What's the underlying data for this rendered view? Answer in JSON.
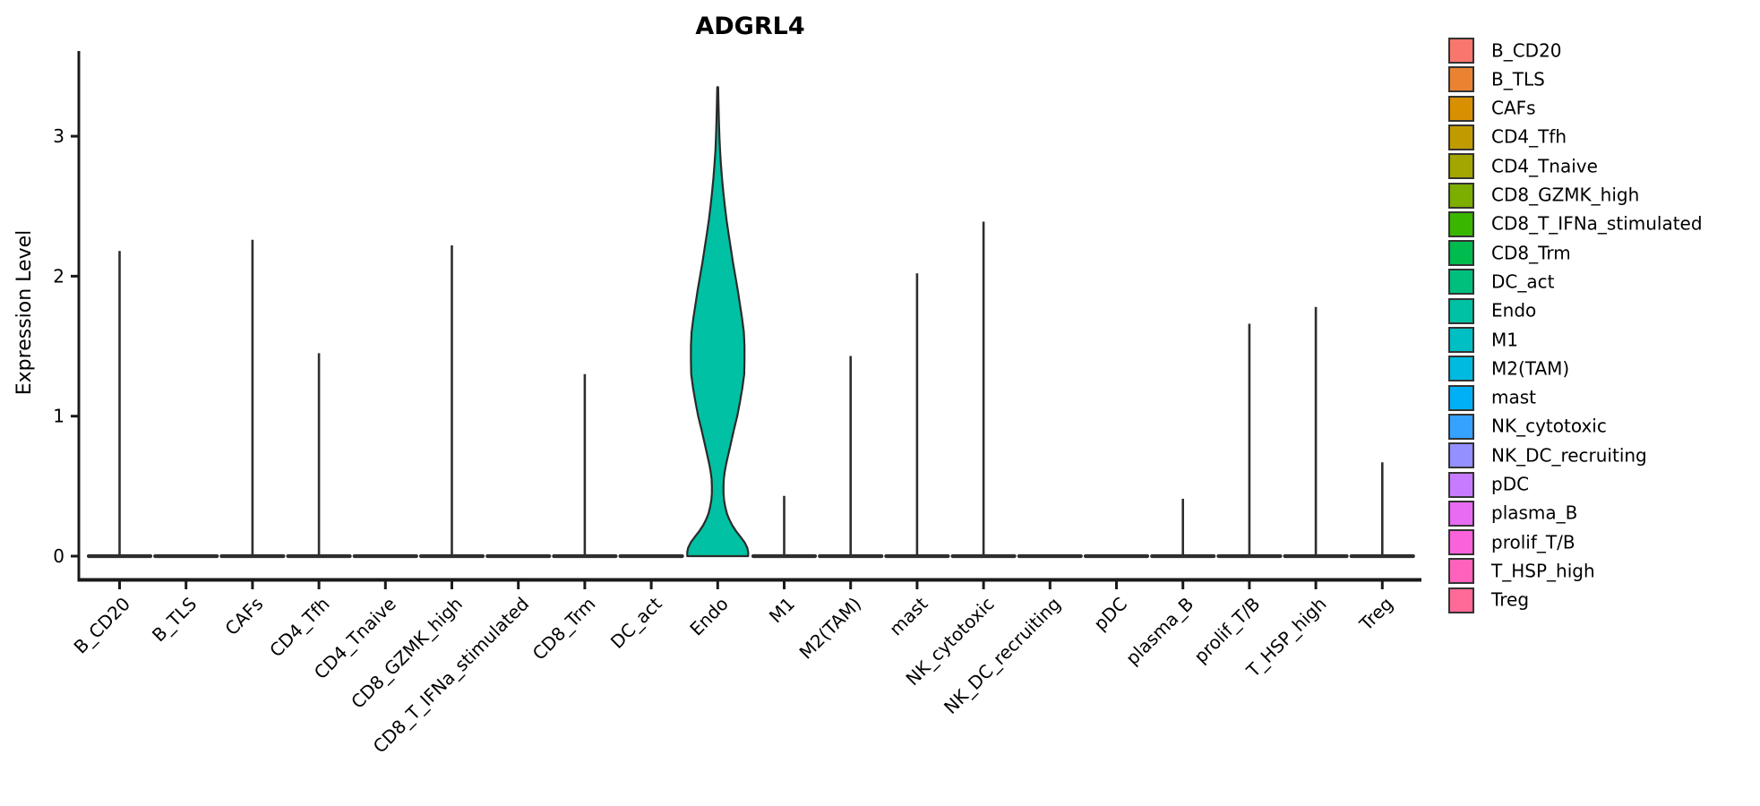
{
  "figure": {
    "title": "ADGRL4",
    "ylabel": "Expression Level"
  },
  "chart_data": {
    "type": "violin",
    "title": "ADGRL4",
    "xlabel": "",
    "ylabel": "Expression Level",
    "yticks": [
      0,
      1,
      2,
      3
    ],
    "ylim": [
      -0.17,
      3.6
    ],
    "grid": false,
    "legend_position": "right",
    "violin_fill_applies_to": "Endo",
    "outline_color": "#2e2e2e",
    "categories": [
      {
        "name": "B_CD20",
        "color": "#F8766D",
        "max_expression": 2.18
      },
      {
        "name": "B_TLS",
        "color": "#EA8331",
        "max_expression": 0
      },
      {
        "name": "CAFs",
        "color": "#D89000",
        "max_expression": 2.26
      },
      {
        "name": "CD4_Tfh",
        "color": "#C09B00",
        "max_expression": 1.45
      },
      {
        "name": "CD4_Tnaive",
        "color": "#A3A500",
        "max_expression": 0
      },
      {
        "name": "CD8_GZMK_high",
        "color": "#7CAE00",
        "max_expression": 2.22
      },
      {
        "name": "CD8_T_IFNa_stimulated",
        "color": "#39B600",
        "max_expression": 0
      },
      {
        "name": "CD8_Trm",
        "color": "#00BB4E",
        "max_expression": 1.3
      },
      {
        "name": "DC_act",
        "color": "#00BF7D",
        "max_expression": 0
      },
      {
        "name": "Endo",
        "color": "#00C1A3",
        "max_expression": 3.35
      },
      {
        "name": "M1",
        "color": "#00BFC4",
        "max_expression": 0.43
      },
      {
        "name": "M2(TAM)",
        "color": "#00BAE0",
        "max_expression": 1.43
      },
      {
        "name": "mast",
        "color": "#00B0F6",
        "max_expression": 2.02
      },
      {
        "name": "NK_cytotoxic",
        "color": "#35A2FF",
        "max_expression": 2.39
      },
      {
        "name": "NK_DC_recruiting",
        "color": "#9590FF",
        "max_expression": 0
      },
      {
        "name": "pDC",
        "color": "#C77CFF",
        "max_expression": 0
      },
      {
        "name": "plasma_B",
        "color": "#E76BF3",
        "max_expression": 0.41
      },
      {
        "name": "prolif_T/B",
        "color": "#FA62DB",
        "max_expression": 1.66
      },
      {
        "name": "T_HSP_high",
        "color": "#FF62BC",
        "max_expression": 1.78
      },
      {
        "name": "Treg",
        "color": "#FF6A98",
        "max_expression": 0.67
      }
    ],
    "expressed_violin": {
      "category": "Endo",
      "max": 3.35,
      "density_profile": [
        [
          0.0,
          1.0
        ],
        [
          0.03,
          1.0
        ],
        [
          0.06,
          0.97
        ],
        [
          0.1,
          0.88
        ],
        [
          0.14,
          0.74
        ],
        [
          0.18,
          0.6
        ],
        [
          0.22,
          0.48
        ],
        [
          0.26,
          0.385
        ],
        [
          0.3,
          0.31
        ],
        [
          0.35,
          0.25
        ],
        [
          0.4,
          0.21
        ],
        [
          0.45,
          0.19
        ],
        [
          0.5,
          0.19
        ],
        [
          0.55,
          0.2
        ],
        [
          0.6,
          0.23
        ],
        [
          0.65,
          0.27
        ],
        [
          0.7,
          0.32
        ],
        [
          0.8,
          0.425
        ],
        [
          0.9,
          0.53
        ],
        [
          1.0,
          0.64
        ],
        [
          1.1,
          0.73
        ],
        [
          1.2,
          0.81
        ],
        [
          1.3,
          0.87
        ],
        [
          1.4,
          0.88
        ],
        [
          1.5,
          0.88
        ],
        [
          1.6,
          0.86
        ],
        [
          1.7,
          0.8
        ],
        [
          1.8,
          0.73
        ],
        [
          1.9,
          0.66
        ],
        [
          2.0,
          0.58
        ],
        [
          2.1,
          0.5
        ],
        [
          2.2,
          0.43
        ],
        [
          2.3,
          0.36
        ],
        [
          2.4,
          0.29
        ],
        [
          2.5,
          0.235
        ],
        [
          2.6,
          0.185
        ],
        [
          2.7,
          0.14
        ],
        [
          2.8,
          0.105
        ],
        [
          2.9,
          0.075
        ],
        [
          3.0,
          0.055
        ],
        [
          3.1,
          0.04
        ],
        [
          3.2,
          0.028
        ],
        [
          3.35,
          0.015
        ]
      ]
    }
  }
}
